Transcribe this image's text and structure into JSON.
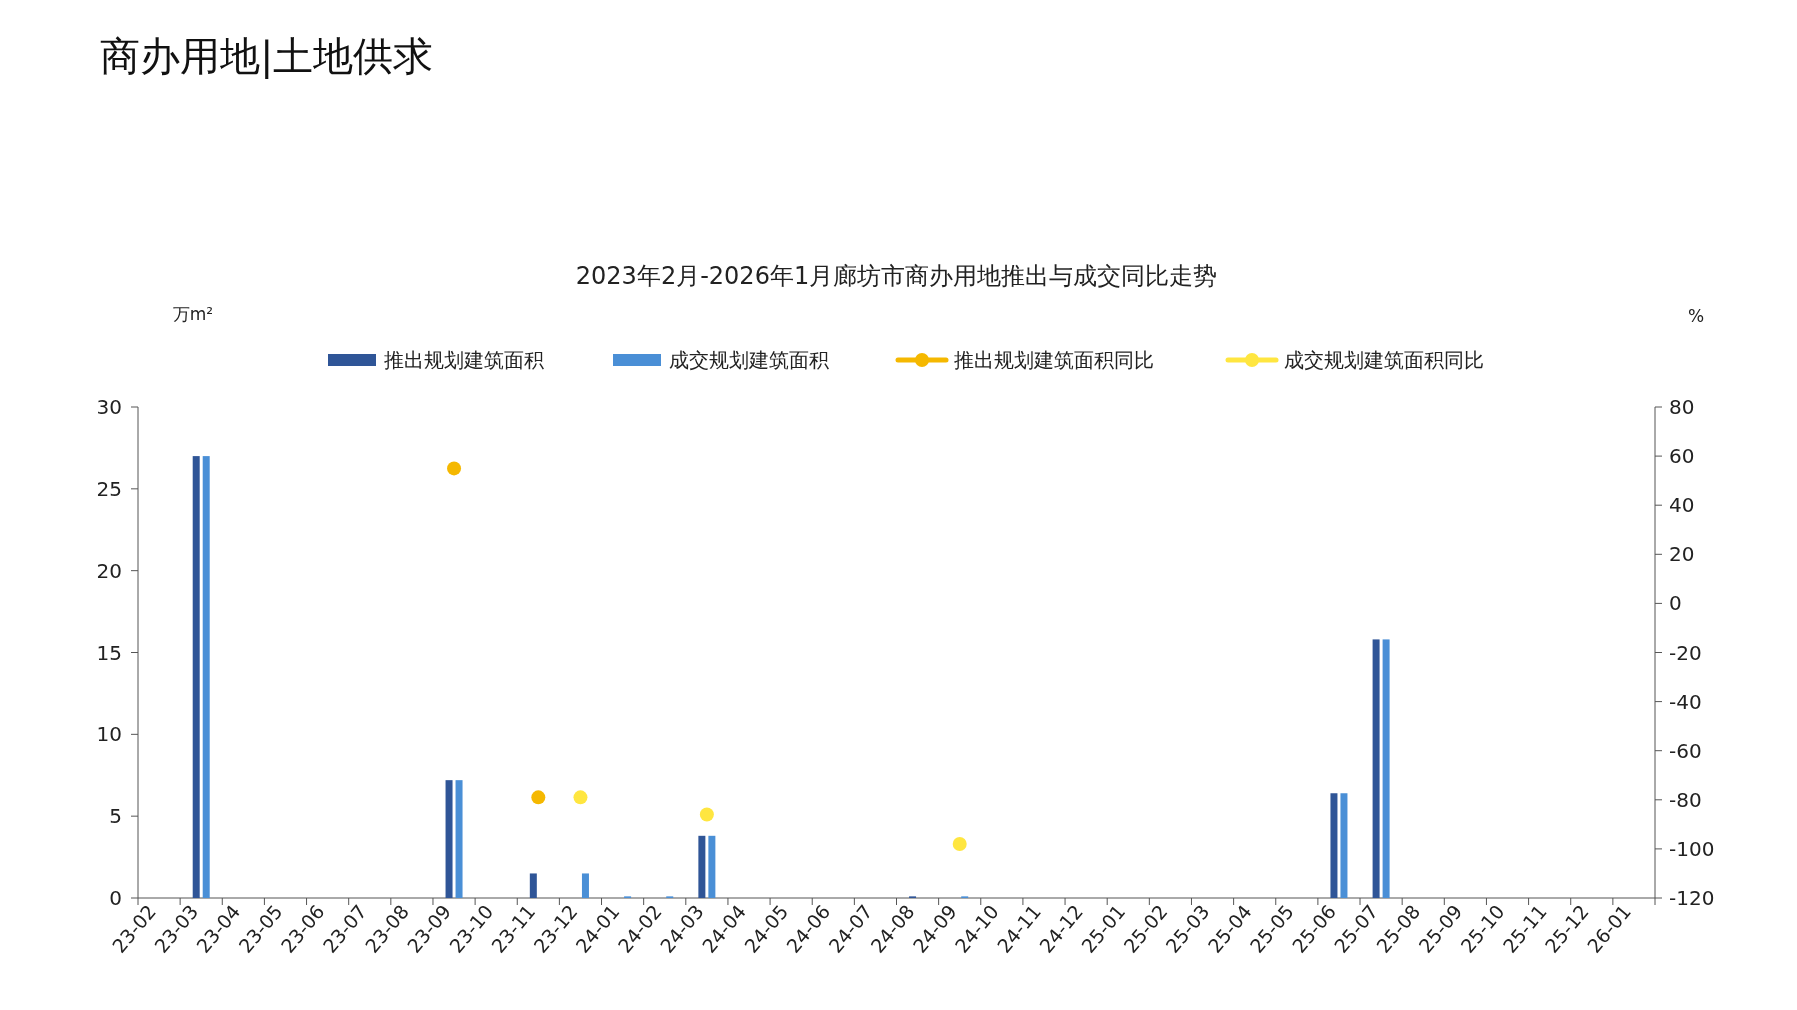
{
  "chart_data": {
    "type": "bar",
    "title": "商办用地|土地供求",
    "subtitle": "2023年2月-2026年1月廊坊市商办用地推出与成交同比走势",
    "ylabel": "万m²",
    "y2label": "%",
    "categories": [
      "23-02",
      "23-03",
      "23-04",
      "23-05",
      "23-06",
      "23-07",
      "23-08",
      "23-09",
      "23-10",
      "23-11",
      "23-12",
      "24-01",
      "24-02",
      "24-03",
      "24-04",
      "24-05",
      "24-06",
      "24-07",
      "24-08",
      "24-09",
      "24-10",
      "24-11",
      "24-12",
      "25-01",
      "25-02",
      "25-03",
      "25-04",
      "25-05",
      "25-06",
      "25-07",
      "25-08",
      "25-09",
      "25-10",
      "25-11",
      "25-12",
      "26-01"
    ],
    "series": [
      {
        "name": "推出规划建筑面积",
        "color": "#2f5597",
        "values": [
          0,
          27,
          0,
          0,
          0,
          0,
          0,
          7.2,
          0,
          1.5,
          0,
          0,
          0,
          3.8,
          0,
          0,
          0,
          0,
          0.1,
          0,
          0,
          0,
          0,
          0,
          0,
          0,
          0,
          0,
          6.4,
          15.8,
          0,
          0,
          0,
          0,
          0,
          0
        ]
      },
      {
        "name": "成交规划建筑面积",
        "color": "#4a8fd6",
        "values": [
          0,
          27,
          0,
          0,
          0,
          0,
          0,
          7.2,
          0,
          0,
          1.5,
          0.1,
          0.1,
          3.8,
          0,
          0,
          0,
          0,
          0,
          0.1,
          0,
          0,
          0,
          0,
          0,
          0,
          0,
          0,
          6.4,
          15.8,
          0,
          0,
          0,
          0,
          0,
          0
        ]
      },
      {
        "name": "推出规划建筑面积同比",
        "type": "scatter",
        "axis": "y2",
        "color": "#f5b800",
        "values": [
          null,
          null,
          null,
          null,
          null,
          null,
          null,
          55,
          null,
          -79,
          null,
          null,
          null,
          null,
          null,
          null,
          null,
          null,
          null,
          null,
          null,
          null,
          null,
          null,
          null,
          null,
          null,
          null,
          null,
          null,
          null,
          null,
          null,
          null,
          null,
          null
        ]
      },
      {
        "name": "成交规划建筑面积同比",
        "type": "scatter",
        "axis": "y2",
        "color": "#ffe640",
        "values": [
          null,
          null,
          null,
          null,
          null,
          null,
          null,
          null,
          null,
          null,
          -79,
          null,
          null,
          -86,
          null,
          null,
          null,
          null,
          null,
          -98,
          null,
          null,
          null,
          null,
          null,
          null,
          null,
          null,
          null,
          null,
          null,
          null,
          null,
          null,
          null,
          null
        ]
      }
    ],
    "ylim": [
      0,
      30
    ],
    "yticks": [
      0,
      5,
      10,
      15,
      20,
      25,
      30
    ],
    "y2lim": [
      -120,
      80
    ],
    "y2ticks": [
      -120,
      -100,
      -80,
      -60,
      -40,
      -20,
      0,
      20,
      40,
      60,
      80
    ],
    "legend": "top",
    "marker": "circle",
    "grid": false
  }
}
